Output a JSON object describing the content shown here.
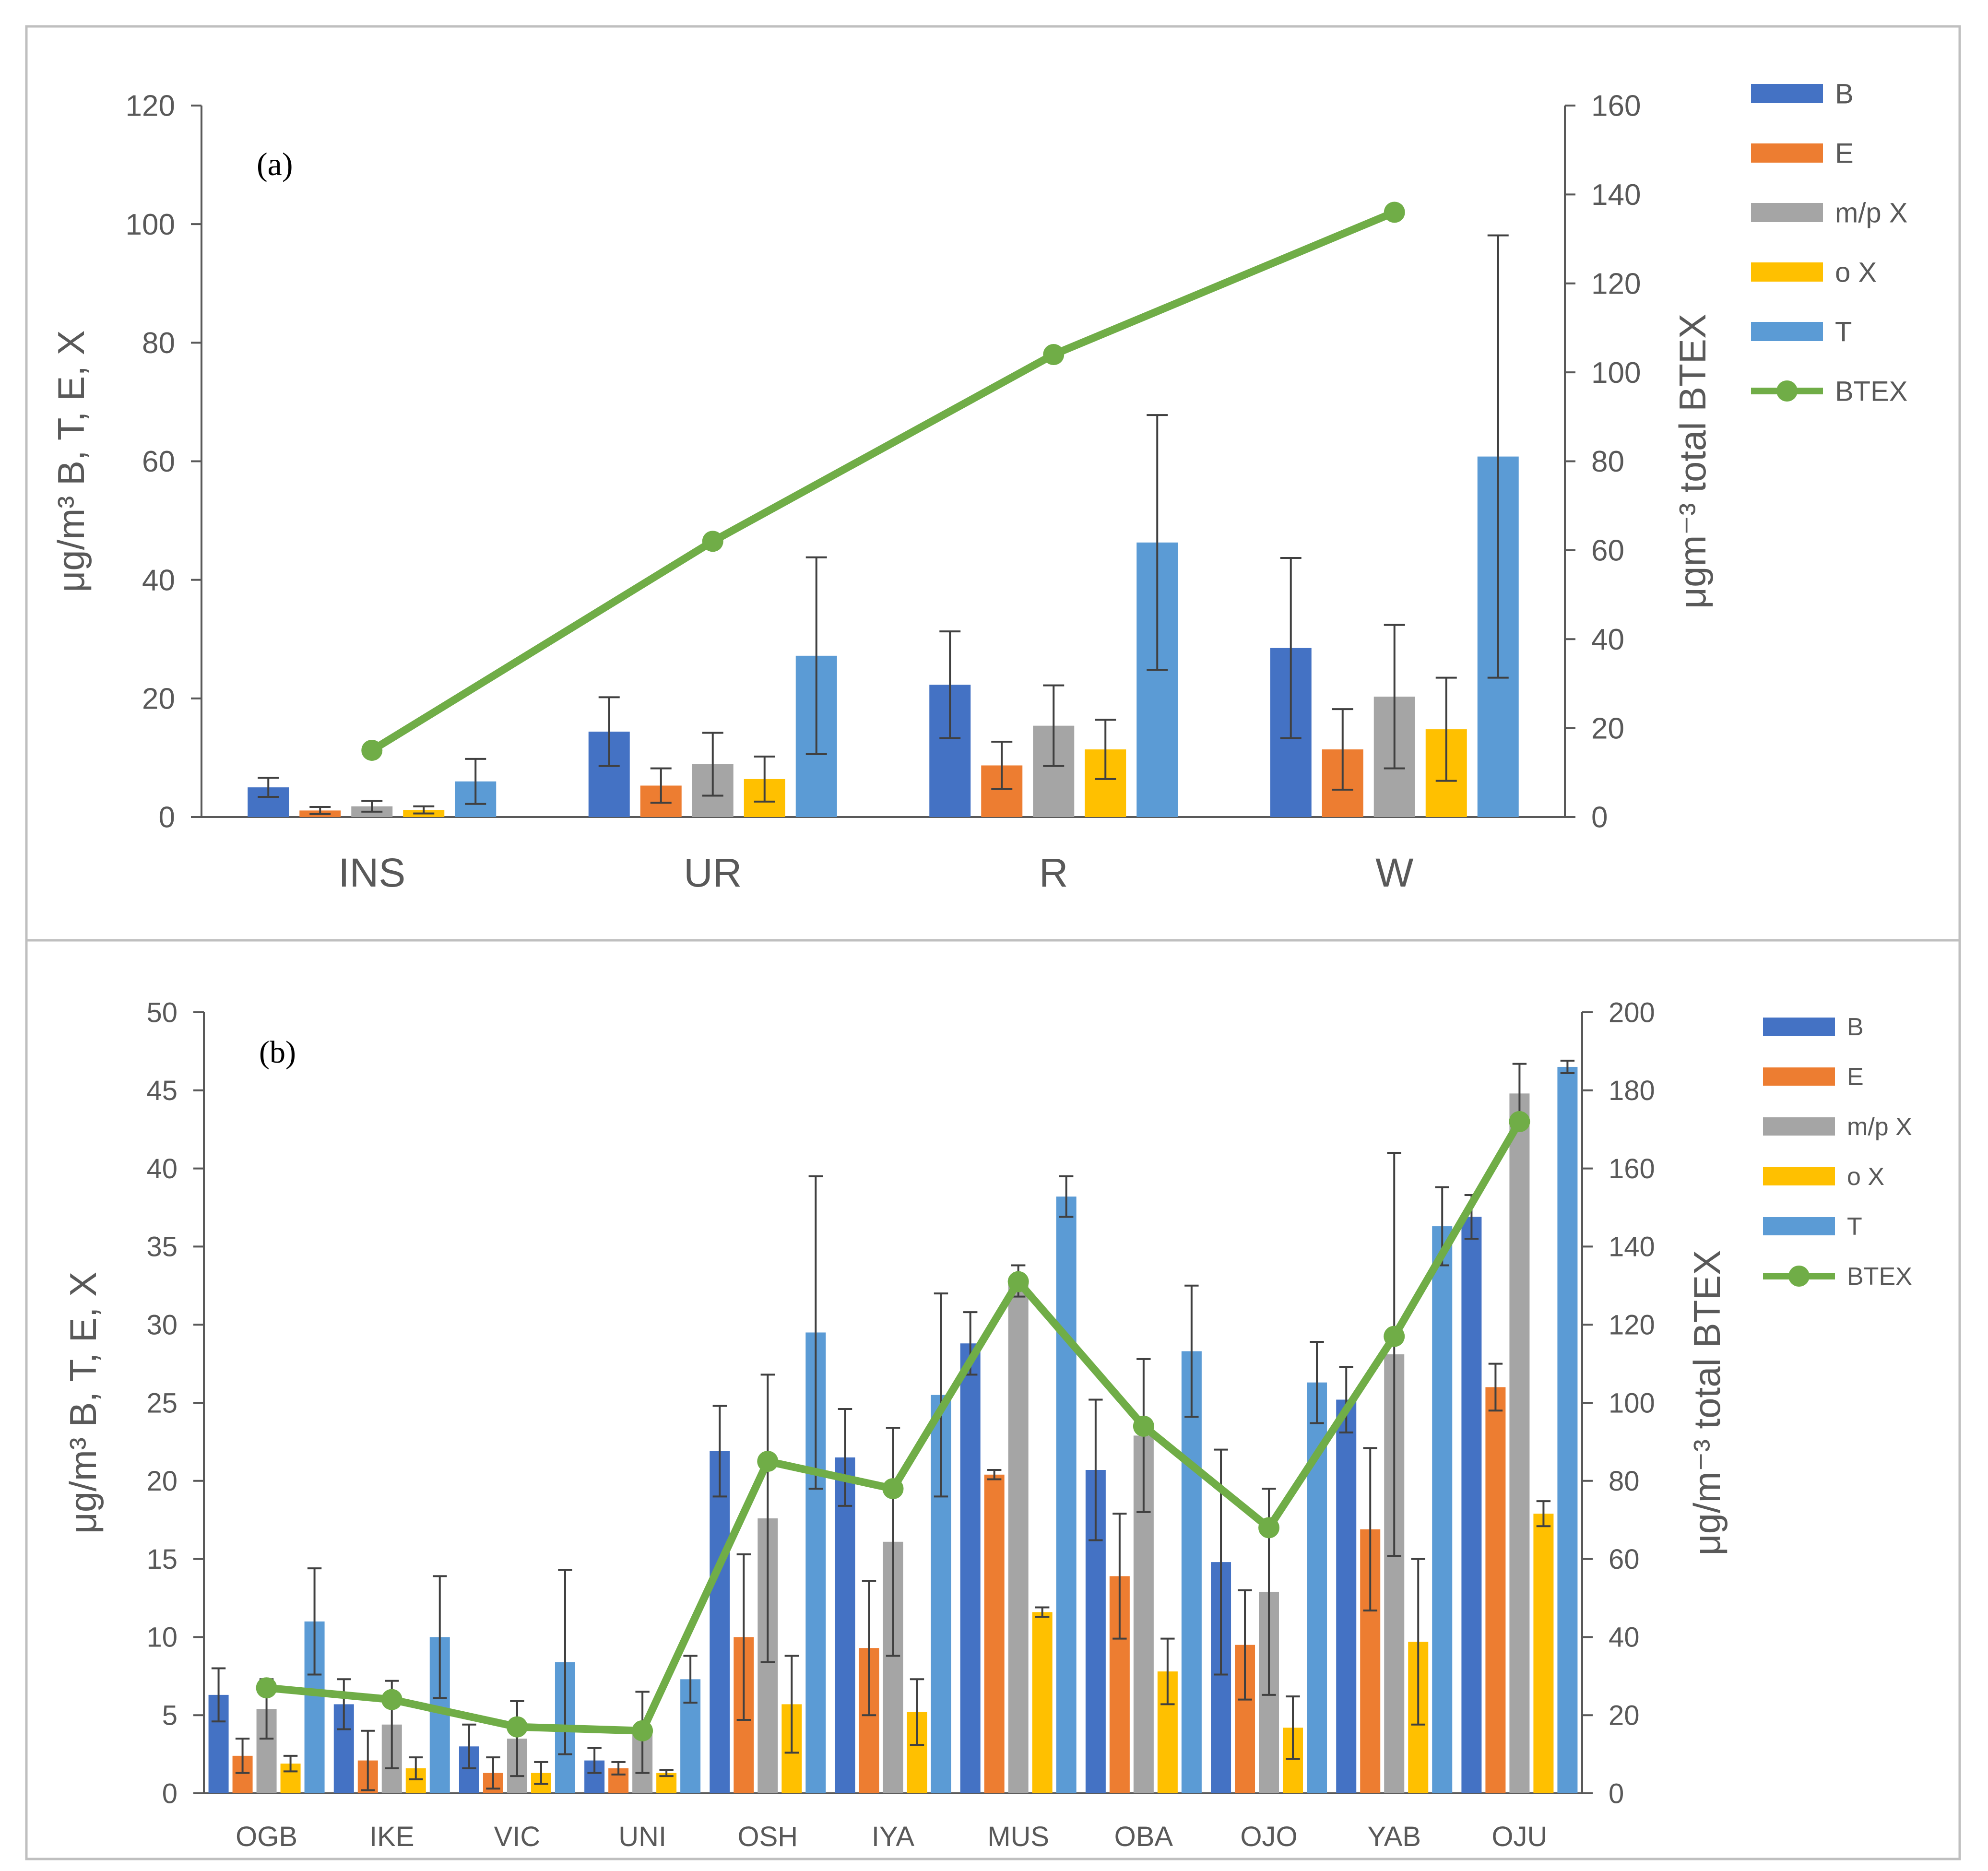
{
  "colors": {
    "B": "#4472C4",
    "E": "#ED7D31",
    "m/p X": "#A5A5A5",
    "o X": "#FFC000",
    "T": "#5B9BD5",
    "BTEX": "#70AD47",
    "axis": "#595959",
    "error_bar": "#404040",
    "border": "#BFBFBF"
  },
  "chart_data": [
    {
      "type": "bar",
      "panel_label": "(a)",
      "categories": [
        "INS",
        "UR",
        "R",
        "W"
      ],
      "ylabel": "μg/m³ B, T, E, X",
      "y2label": "μgm⁻³ total BTEX",
      "ylim": [
        0,
        120
      ],
      "y2lim": [
        0,
        160
      ],
      "yticks": [
        0,
        20,
        40,
        60,
        80,
        100,
        120
      ],
      "y2ticks": [
        0,
        20,
        40,
        60,
        80,
        100,
        120,
        140,
        160
      ],
      "legend_position": "right",
      "grid": false,
      "series": [
        {
          "name": "B",
          "type": "bar",
          "values": [
            5.0,
            14.4,
            22.3,
            28.5
          ],
          "errors": [
            1.6,
            5.8,
            9.0,
            15.2
          ]
        },
        {
          "name": "E",
          "type": "bar",
          "values": [
            1.1,
            5.3,
            8.7,
            11.4
          ],
          "errors": [
            0.6,
            2.9,
            4.0,
            6.8
          ]
        },
        {
          "name": "m/p X",
          "type": "bar",
          "values": [
            1.8,
            8.9,
            15.4,
            20.3
          ],
          "errors": [
            0.9,
            5.3,
            6.8,
            12.1
          ]
        },
        {
          "name": "o X",
          "type": "bar",
          "values": [
            1.2,
            6.4,
            11.4,
            14.8
          ],
          "errors": [
            0.6,
            3.8,
            5.0,
            8.7
          ]
        },
        {
          "name": "T",
          "type": "bar",
          "values": [
            6.0,
            27.2,
            46.3,
            60.8
          ],
          "errors": [
            3.8,
            16.6,
            21.5,
            37.3
          ]
        },
        {
          "name": "BTEX",
          "type": "line",
          "axis": "secondary",
          "values": [
            15,
            62,
            104,
            136
          ]
        }
      ]
    },
    {
      "type": "bar",
      "panel_label": "(b)",
      "categories": [
        "OGB",
        "IKE",
        "VIC",
        "UNI",
        "OSH",
        "IYA",
        "MUS",
        "OBA",
        "OJO",
        "YAB",
        "OJU"
      ],
      "ylabel": "μg/m³ B, T, E, X",
      "y2label": "μg/m⁻³ total BTEX",
      "ylim": [
        0,
        50
      ],
      "y2lim": [
        0,
        200
      ],
      "yticks": [
        0,
        5,
        10,
        15,
        20,
        25,
        30,
        35,
        40,
        45,
        50
      ],
      "y2ticks": [
        0,
        20,
        40,
        60,
        80,
        100,
        120,
        140,
        160,
        180,
        200
      ],
      "legend_position": "right",
      "grid": false,
      "series": [
        {
          "name": "B",
          "type": "bar",
          "values": [
            6.3,
            5.7,
            3.0,
            2.1,
            21.9,
            21.5,
            28.8,
            20.7,
            14.8,
            25.2,
            36.9
          ],
          "errors": [
            1.7,
            1.6,
            1.4,
            0.8,
            2.9,
            3.1,
            2.0,
            4.5,
            7.2,
            2.1,
            1.4
          ]
        },
        {
          "name": "E",
          "type": "bar",
          "values": [
            2.4,
            2.1,
            1.3,
            1.6,
            10.0,
            9.3,
            20.4,
            13.9,
            9.5,
            16.9,
            26.0
          ],
          "errors": [
            1.1,
            1.9,
            1.0,
            0.4,
            5.3,
            4.3,
            0.3,
            4.0,
            3.5,
            5.2,
            1.5
          ]
        },
        {
          "name": "m/p X",
          "type": "bar",
          "values": [
            5.4,
            4.4,
            3.5,
            3.9,
            17.6,
            16.1,
            32.8,
            22.9,
            12.9,
            28.1,
            44.8
          ],
          "errors": [
            1.9,
            2.8,
            2.4,
            2.6,
            9.2,
            7.3,
            1.0,
            4.9,
            6.6,
            12.9,
            1.9
          ]
        },
        {
          "name": "o X",
          "type": "bar",
          "values": [
            1.9,
            1.6,
            1.3,
            1.3,
            5.7,
            5.2,
            11.6,
            7.8,
            4.2,
            9.7,
            17.9
          ],
          "errors": [
            0.5,
            0.7,
            0.7,
            0.2,
            3.1,
            2.1,
            0.3,
            2.1,
            2.0,
            5.3,
            0.8
          ]
        },
        {
          "name": "T",
          "type": "bar",
          "values": [
            11.0,
            10.0,
            8.4,
            7.3,
            29.5,
            25.5,
            38.2,
            28.3,
            26.3,
            36.3,
            46.5
          ],
          "errors": [
            3.4,
            3.9,
            5.9,
            1.5,
            10.0,
            6.5,
            1.3,
            4.2,
            2.6,
            2.5,
            0.4
          ]
        },
        {
          "name": "BTEX",
          "type": "line",
          "axis": "secondary",
          "values": [
            27,
            24,
            17,
            16,
            85,
            78,
            131,
            94,
            68,
            117,
            172
          ]
        }
      ]
    }
  ]
}
